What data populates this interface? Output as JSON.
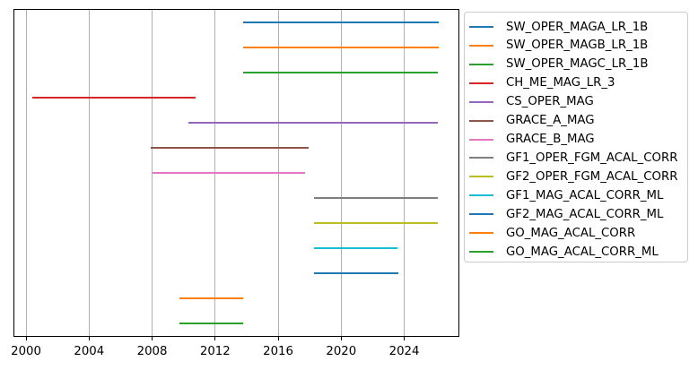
{
  "chart_data": {
    "type": "bar",
    "subtype": "horizontal-range-timeline",
    "title": "",
    "xlabel": "",
    "ylabel": "",
    "xlim": [
      1999.2,
      2027.5
    ],
    "xtick_values": [
      2000,
      2004,
      2008,
      2012,
      2016,
      2020,
      2024
    ],
    "xtick_labels": [
      "2000",
      "2004",
      "2008",
      "2012",
      "2016",
      "2020",
      "2024"
    ],
    "grid": "vertical-only",
    "legend_position": "outside-upper-right",
    "series": [
      {
        "name": "SW_OPER_MAGA_LR_1B",
        "start": 2013.8,
        "end": 2026.2,
        "color": "#1f77b4"
      },
      {
        "name": "SW_OPER_MAGB_LR_1B",
        "start": 2013.8,
        "end": 2026.2,
        "color": "#ff7f0e"
      },
      {
        "name": "SW_OPER_MAGC_LR_1B",
        "start": 2013.8,
        "end": 2026.15,
        "color": "#2ca02c"
      },
      {
        "name": "CH_ME_MAG_LR_3",
        "start": 2000.4,
        "end": 2010.75,
        "color": "#d62728"
      },
      {
        "name": "CS_OPER_MAG",
        "start": 2010.3,
        "end": 2026.15,
        "color": "#9467bd"
      },
      {
        "name": "GRACE_A_MAG",
        "start": 2007.9,
        "end": 2017.95,
        "color": "#8c564b"
      },
      {
        "name": "GRACE_B_MAG",
        "start": 2008.0,
        "end": 2017.7,
        "color": "#e377c2"
      },
      {
        "name": "GF1_OPER_FGM_ACAL_CORR",
        "start": 2018.3,
        "end": 2026.15,
        "color": "#7f7f7f"
      },
      {
        "name": "GF2_OPER_FGM_ACAL_CORR",
        "start": 2018.3,
        "end": 2026.15,
        "color": "#bcbd22"
      },
      {
        "name": "GF1_MAG_ACAL_CORR_ML",
        "start": 2018.3,
        "end": 2023.6,
        "color": "#17becf"
      },
      {
        "name": "GF2_MAG_ACAL_CORR_ML",
        "start": 2018.3,
        "end": 2023.65,
        "color": "#1f77b4"
      },
      {
        "name": "GO_MAG_ACAL_CORR",
        "start": 2009.75,
        "end": 2013.8,
        "color": "#ff7f0e"
      },
      {
        "name": "GO_MAG_ACAL_CORR_ML",
        "start": 2009.75,
        "end": 2013.8,
        "color": "#2ca02c"
      }
    ],
    "colors": {
      "background": "#ffffff",
      "grid": "#b0b0b0",
      "axis": "#000000",
      "text": "#000000",
      "legend_border": "#cccccc"
    }
  }
}
